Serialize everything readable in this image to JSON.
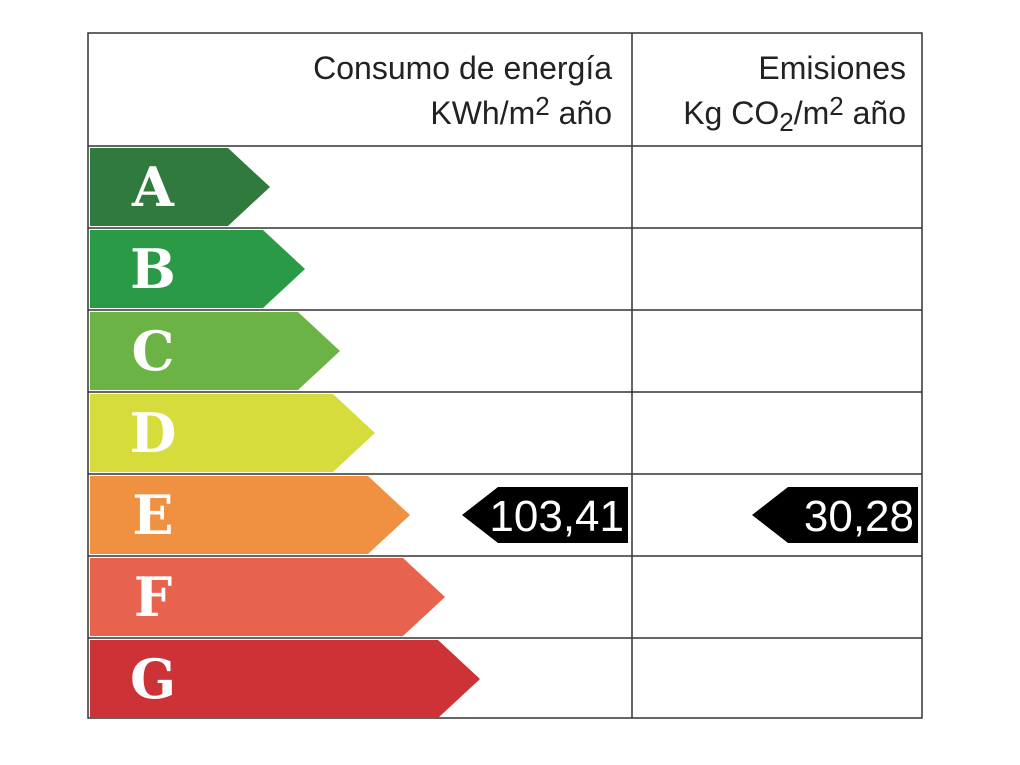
{
  "header": {
    "energy": {
      "title": "Consumo de energía",
      "unit": [
        {
          "text": "KWh/m"
        },
        {
          "sup": "2"
        },
        {
          "text": " año"
        }
      ]
    },
    "emissions": {
      "title": "Emisiones",
      "unit": [
        {
          "text": "Kg CO"
        },
        {
          "sub": "2"
        },
        {
          "text": "/m"
        },
        {
          "sup": "2"
        },
        {
          "text": " año"
        }
      ]
    }
  },
  "rows": [
    {
      "letter": "A",
      "color": "#2f7a3c"
    },
    {
      "letter": "B",
      "color": "#2a9a47"
    },
    {
      "letter": "C",
      "color": "#6bb344"
    },
    {
      "letter": "D",
      "color": "#d7dc3d"
    },
    {
      "letter": "E",
      "color": "#ef9140",
      "energy": "103,41",
      "emissions": "30,28"
    },
    {
      "letter": "F",
      "color": "#e8634d"
    },
    {
      "letter": "G",
      "color": "#cc3236"
    }
  ]
}
